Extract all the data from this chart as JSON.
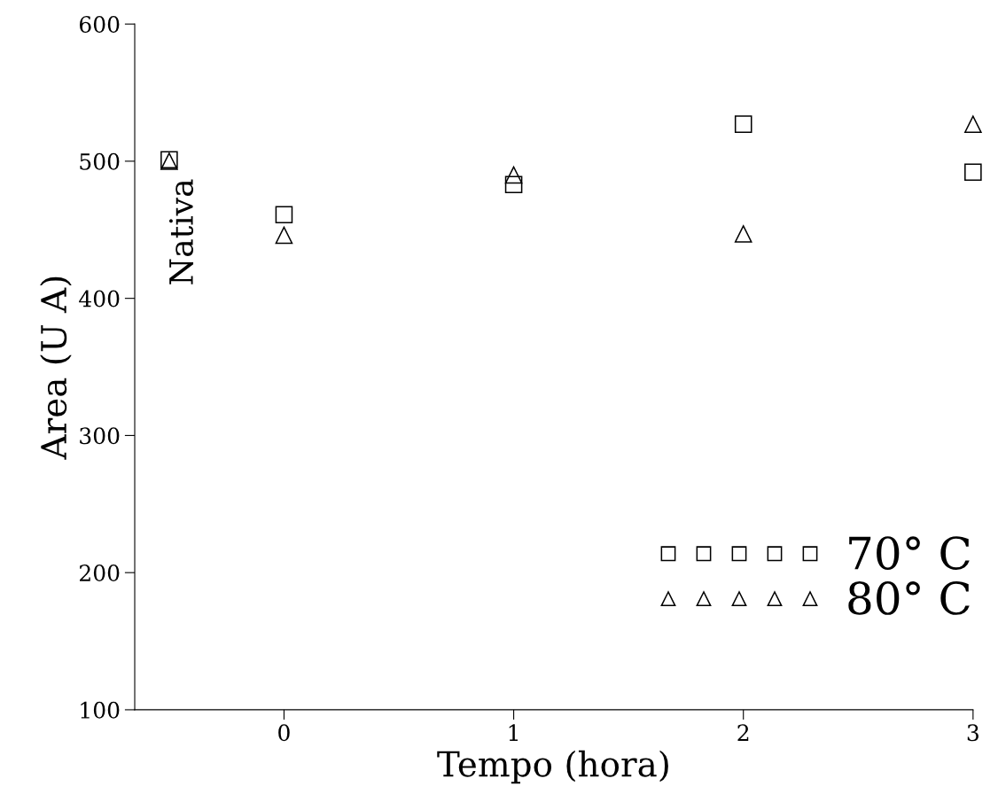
{
  "chart_data": {
    "type": "scatter",
    "xlabel": "Tempo (hora)",
    "ylabel": "Area (U A)",
    "xlim": [
      -0.65,
      3
    ],
    "xticks": [
      0,
      1,
      2,
      3
    ],
    "ylim": [
      100,
      600
    ],
    "yticks": [
      100,
      200,
      300,
      400,
      500,
      600
    ],
    "grid": false,
    "legend": "bottom right",
    "annotations": [
      {
        "text": "Nativa",
        "x": -0.5,
        "y": 500
      }
    ],
    "series": [
      {
        "name": "70° C",
        "color": "#000000",
        "marker": "square",
        "x": [
          -0.5,
          0,
          1,
          2,
          3
        ],
        "values": [
          501,
          461,
          483,
          527,
          492
        ]
      },
      {
        "name": "80° C",
        "color": "#000000",
        "marker": "triangle",
        "x": [
          -0.5,
          0,
          1,
          2,
          3
        ],
        "values": [
          500,
          446,
          490,
          447,
          527
        ]
      }
    ]
  }
}
